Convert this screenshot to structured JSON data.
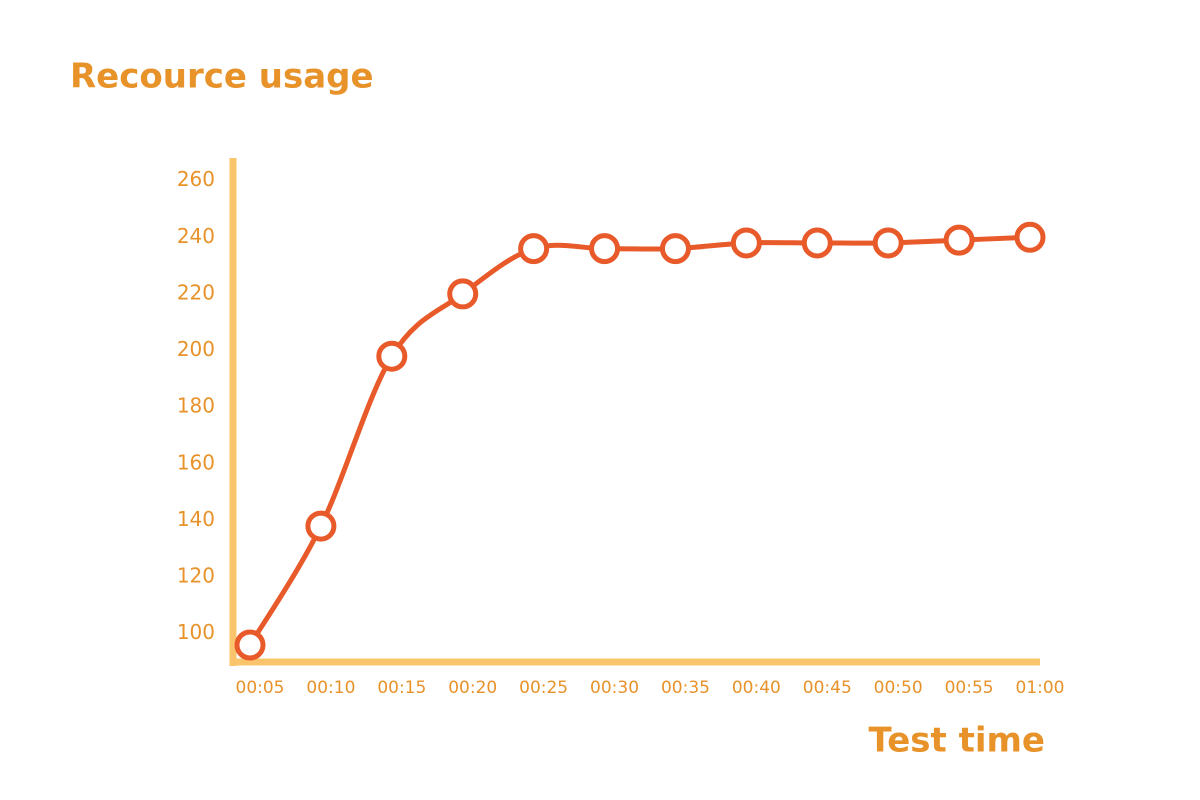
{
  "chart_data": {
    "type": "line",
    "title": "Recource usage",
    "x_label": "Test time",
    "categories": [
      "00:05",
      "00:10",
      "00:15",
      "00:20",
      "00:25",
      "00:30",
      "00:35",
      "00:40",
      "00:45",
      "00:50",
      "00:55",
      "01:00"
    ],
    "series": [
      {
        "color": "#e85a2a",
        "values": [
          96,
          138,
          198,
          220,
          236,
          236,
          236,
          238,
          238,
          238,
          239,
          240
        ]
      }
    ],
    "ylim": [
      90,
      268
    ],
    "yticks": [
      100,
      120,
      140,
      160,
      180,
      200,
      220,
      240,
      260
    ],
    "axis_color": "#f9c46b",
    "text_color": "#e8922a",
    "grid": false
  }
}
